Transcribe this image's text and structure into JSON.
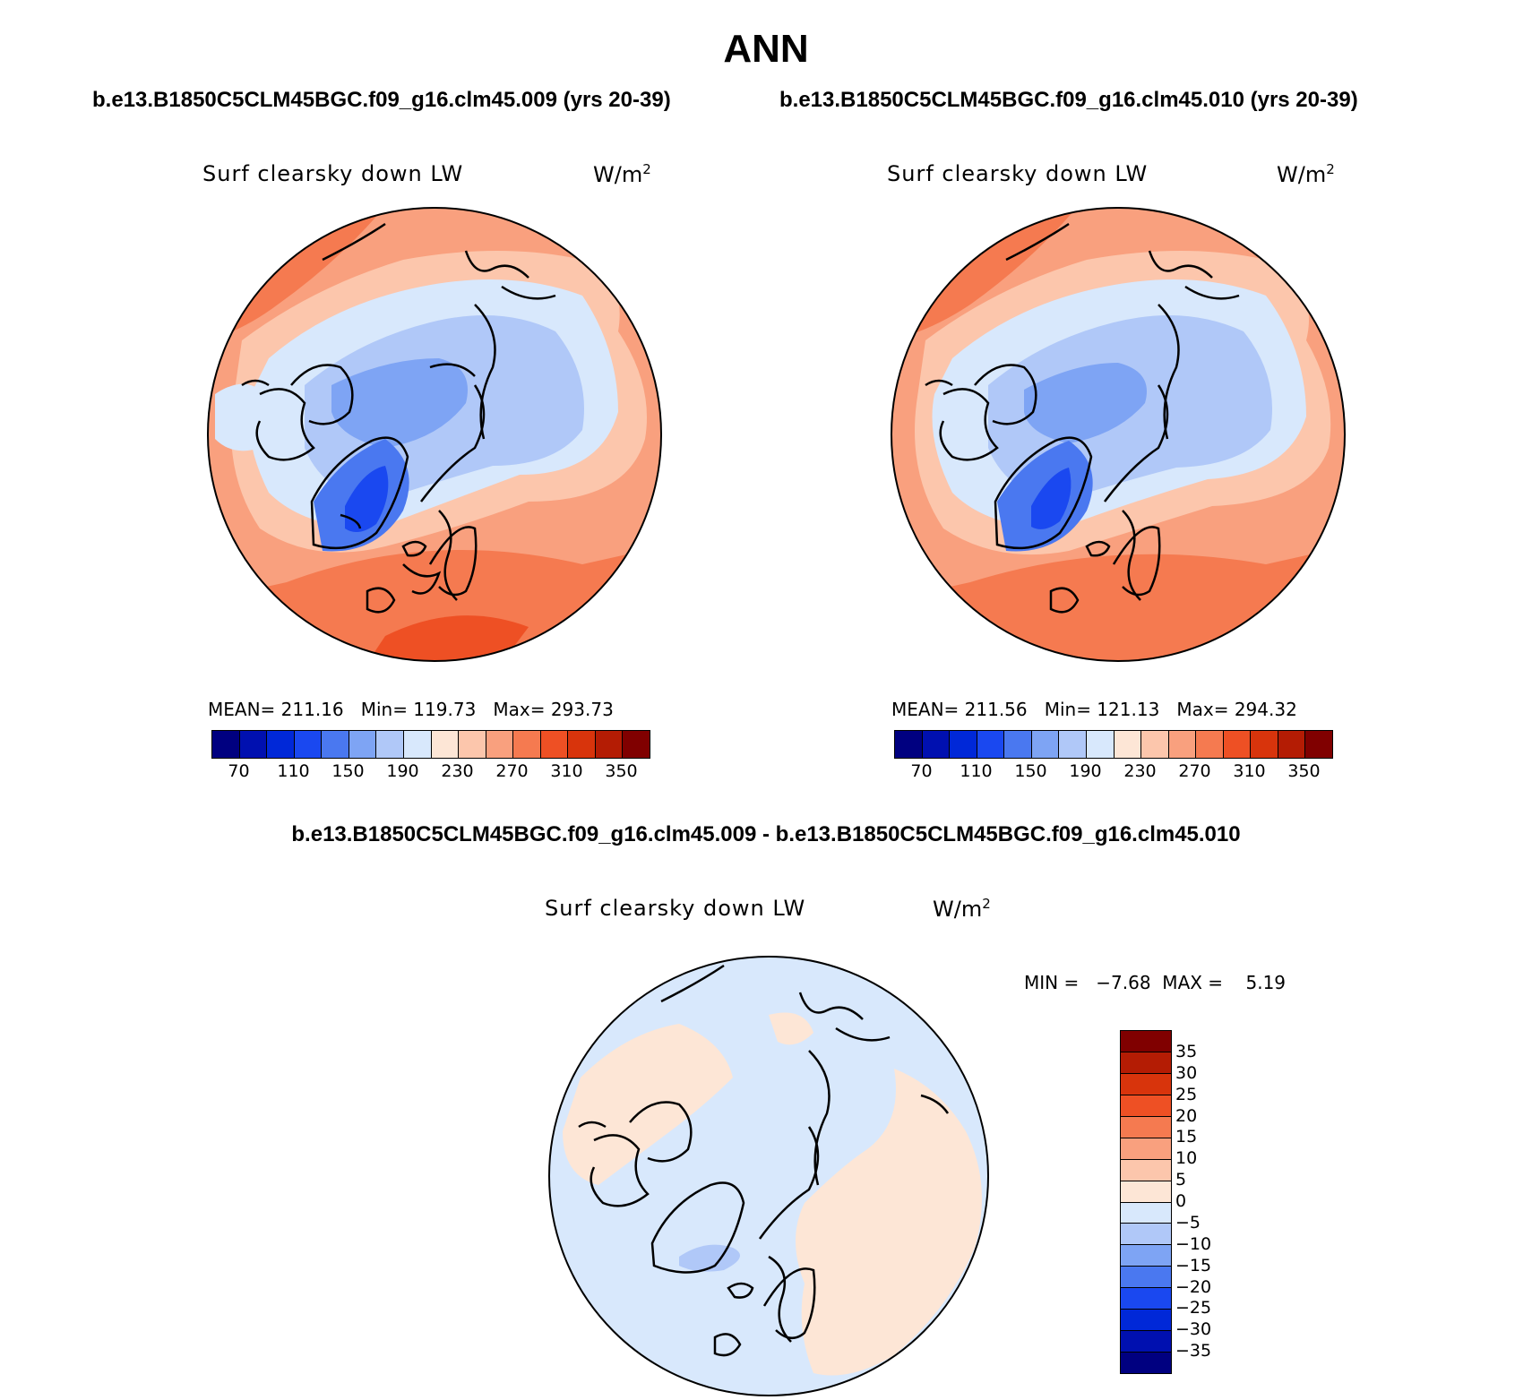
{
  "title": "ANN",
  "case_left": "b.e13.B1850C5CLM45BGC.f09_g16.clm45.009 (yrs 20-39)",
  "case_right": "b.e13.B1850C5CLM45BGC.f09_g16.clm45.010 (yrs 20-39)",
  "diff_title": "b.e13.B1850C5CLM45BGC.f09_g16.clm45.009 - b.e13.B1850C5CLM45BGC.f09_g16.clm45.010",
  "panels": [
    {
      "variable": "Surf clearsky down LW",
      "units_base": "W/m",
      "units_exp": "2",
      "stats": "MEAN= 211.16   Min= 119.73   Max= 293.73"
    },
    {
      "variable": "Surf clearsky down LW",
      "units_base": "W/m",
      "units_exp": "2",
      "stats": "MEAN= 211.56   Min= 121.13   Max= 294.32"
    },
    {
      "variable": "Surf clearsky down LW",
      "units_base": "W/m",
      "units_exp": "2",
      "stats": "MIN =   −7.68  MAX =    5.19"
    }
  ],
  "colorbar_abs": {
    "colors": [
      "#000080",
      "#0010b0",
      "#0028d8",
      "#1a48f0",
      "#4a78f0",
      "#7ea4f4",
      "#b0c8f8",
      "#d8e8fc",
      "#fde6d6",
      "#fcc6ac",
      "#f9a07e",
      "#f57a50",
      "#ee5024",
      "#d8340c",
      "#b41c04",
      "#800000"
    ],
    "labels": [
      "70",
      "110",
      "150",
      "190",
      "230",
      "270",
      "310",
      "350"
    ]
  },
  "colorbar_diff": {
    "colors": [
      "#800000",
      "#b41c04",
      "#d8340c",
      "#ee5024",
      "#f57a50",
      "#f9a07e",
      "#fcc6ac",
      "#fde6d6",
      "#d8e8fc",
      "#b0c8f8",
      "#7ea4f4",
      "#4a78f0",
      "#1a48f0",
      "#0028d8",
      "#0010b0",
      "#000080"
    ],
    "labels": [
      "35",
      "30",
      "25",
      "20",
      "15",
      "10",
      "5",
      "0",
      "−5",
      "−10",
      "−15",
      "−20",
      "−25",
      "−30",
      "−35"
    ]
  }
}
